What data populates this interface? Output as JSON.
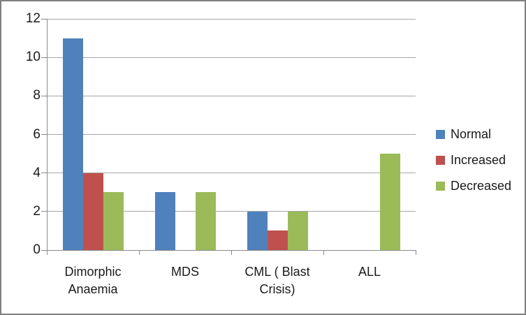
{
  "chart_data": {
    "type": "bar",
    "title": "",
    "xlabel": "",
    "ylabel": "",
    "categories": [
      "Dimorphic\nAnaemia",
      "MDS",
      "CML ( Blast\nCrisis)",
      "ALL"
    ],
    "series": [
      {
        "name": "Normal",
        "color": "#4F81BD",
        "values": [
          11,
          3,
          2,
          0
        ]
      },
      {
        "name": "Increased",
        "color": "#C0504D",
        "values": [
          4,
          0,
          1,
          0
        ]
      },
      {
        "name": "Decreased",
        "color": "#9BBB59",
        "values": [
          3,
          3,
          2,
          5
        ]
      }
    ],
    "ylim": [
      0,
      12
    ],
    "ytick_step": 2,
    "yticks": [
      "0",
      "2",
      "4",
      "6",
      "8",
      "10",
      "12"
    ],
    "grid": true,
    "legend_position": "right"
  },
  "colors": {
    "gridline": "#A6A6A6",
    "axis": "#8A8A8A",
    "frame_border": "#808080",
    "text": "#1A1A1A",
    "background": "#FFFFFF"
  }
}
